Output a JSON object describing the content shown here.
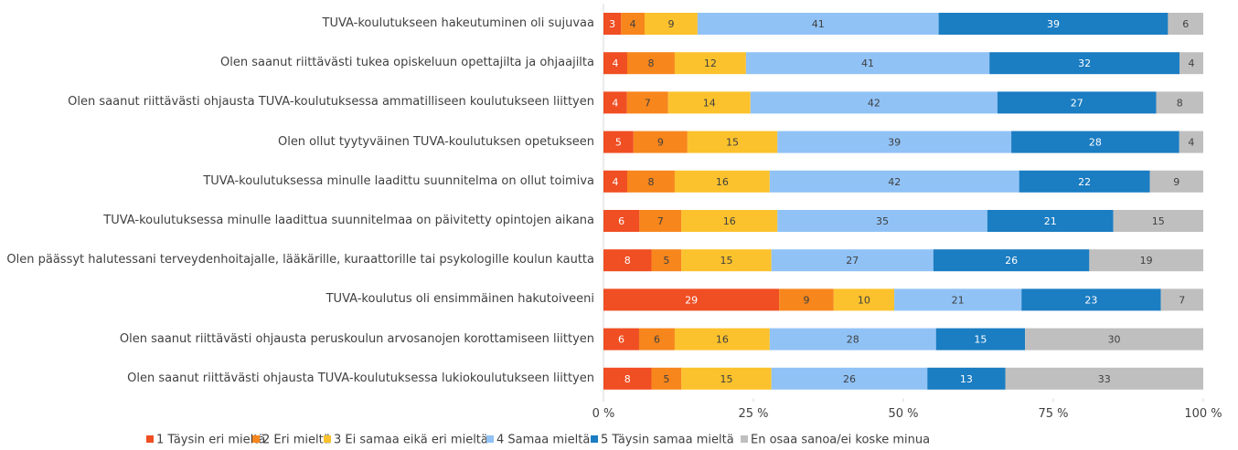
{
  "chart_data": {
    "type": "bar",
    "orientation": "horizontal",
    "stacking": "percent",
    "categories": [
      "TUVA-koulutukseen hakeutuminen oli sujuvaa",
      "Olen saanut riittävästi tukea opiskeluun opettajilta ja ohjaajilta",
      "Olen saanut riittävästi ohjausta TUVA-koulutuksessa ammatilliseen koulutukseen liittyen",
      "Olen ollut tyytyväinen TUVA-koulutuksen opetukseen",
      "TUVA-koulutuksessa minulle laadittu suunnitelma on ollut toimiva",
      "TUVA-koulutuksessa minulle laadittua suunnitelmaa on päivitetty opintojen aikana",
      "Olen päässyt halutessani terveydenhoitajalle, lääkärille, kuraattorille tai psykologille koulun kautta",
      "TUVA-koulutus oli ensimmäinen hakutoiveeni",
      "Olen saanut riittävästi ohjausta peruskoulun arvosanojen korottamiseen liittyen",
      "Olen saanut riittävästi ohjausta TUVA-koulutuksessa lukiokoulutukseen liittyen"
    ],
    "series": [
      {
        "name": "1 Täysin eri mieltä",
        "color": "#f04e23",
        "values": [
          3,
          4,
          4,
          5,
          4,
          6,
          8,
          29,
          6,
          8
        ]
      },
      {
        "name": "2 Eri mieltä",
        "color": "#f7861c",
        "values": [
          4,
          8,
          7,
          9,
          8,
          7,
          5,
          9,
          6,
          5
        ]
      },
      {
        "name": "3 Ei samaa eikä eri mieltä",
        "color": "#fcc22d",
        "values": [
          9,
          12,
          14,
          15,
          16,
          16,
          15,
          10,
          16,
          15
        ]
      },
      {
        "name": "4 Samaa mieltä",
        "color": "#90c2f6",
        "values": [
          41,
          41,
          42,
          39,
          42,
          35,
          27,
          21,
          28,
          26
        ]
      },
      {
        "name": "5 Täysin samaa mieltä",
        "color": "#1b7dc2",
        "values": [
          39,
          32,
          27,
          28,
          22,
          21,
          26,
          23,
          15,
          13
        ]
      },
      {
        "name": "En osaa sanoa/ei koske minua",
        "color": "#bfbfbf",
        "values": [
          6,
          4,
          8,
          4,
          9,
          15,
          19,
          7,
          30,
          33
        ]
      }
    ],
    "xlim": [
      0,
      100
    ],
    "xticks": [
      {
        "value": 0,
        "label": "0 %"
      },
      {
        "value": 25,
        "label": "25 %"
      },
      {
        "value": 50,
        "label": "50 %"
      },
      {
        "value": 75,
        "label": "75 %"
      },
      {
        "value": 100,
        "label": "100 %"
      }
    ],
    "legend": "bottom"
  }
}
